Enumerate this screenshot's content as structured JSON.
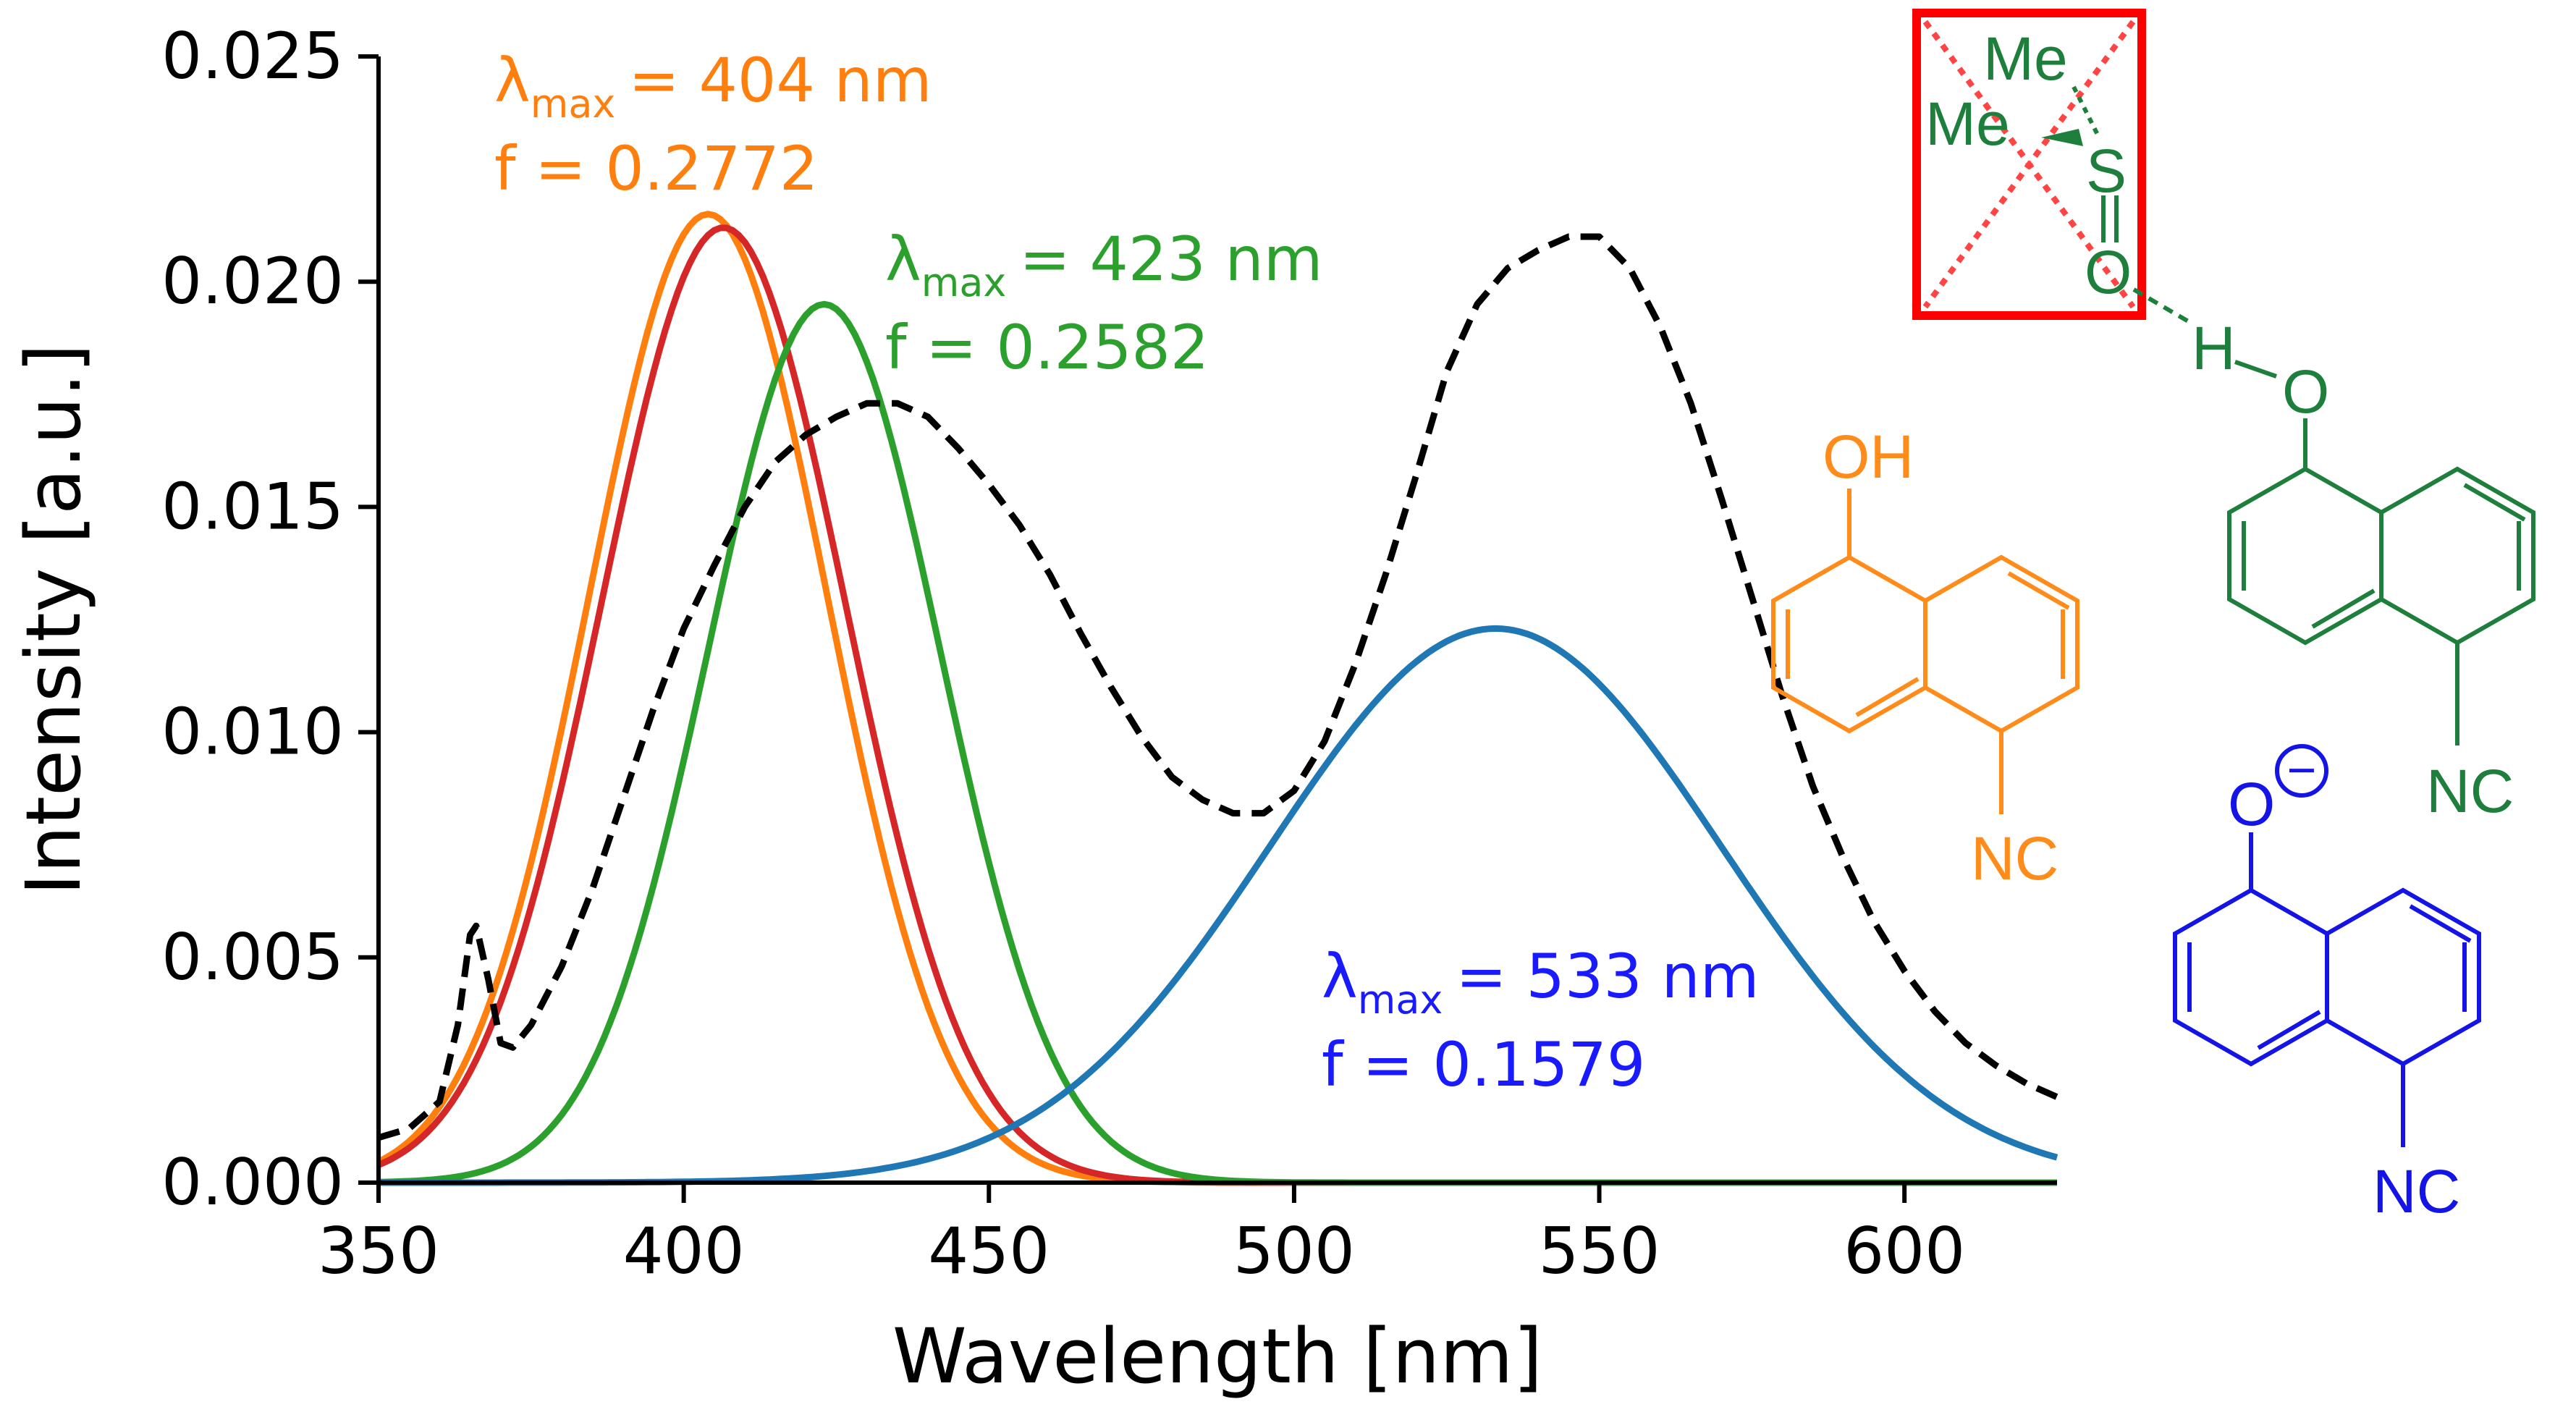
{
  "chart_data": {
    "type": "line",
    "xlabel": "Wavelength [nm]",
    "ylabel": "Intensity [a.u.]",
    "xlim": [
      350,
      625
    ],
    "ylim": [
      0,
      0.025
    ],
    "xticks": [
      350,
      400,
      450,
      500,
      550,
      600
    ],
    "yticks": [
      0.0,
      0.005,
      0.01,
      0.015,
      0.02,
      0.025
    ],
    "xtick_labels": [
      "350",
      "400",
      "450",
      "500",
      "550",
      "600"
    ],
    "ytick_labels": [
      "0.000",
      "0.005",
      "0.010",
      "0.015",
      "0.020",
      "0.025"
    ],
    "grid": false,
    "series": [
      {
        "name": "computed-orange",
        "color": "#ff7f0e",
        "style": "solid",
        "center": 404,
        "amplitude": 0.0215,
        "sigma": 19.5
      },
      {
        "name": "computed-red",
        "color": "#d62728",
        "style": "solid",
        "center": 406.5,
        "amplitude": 0.0212,
        "sigma": 20
      },
      {
        "name": "computed-green",
        "color": "#2ca02c",
        "style": "solid",
        "center": 423,
        "amplitude": 0.0195,
        "sigma": 19
      },
      {
        "name": "computed-blue",
        "color": "#1f77b4",
        "style": "solid",
        "center": 533,
        "amplitude": 0.0123,
        "sigma": 37
      },
      {
        "name": "experimental",
        "color": "#000000",
        "style": "dashed",
        "x": [
          350,
          355,
          360,
          363,
          365,
          366,
          368,
          370,
          372,
          375,
          380,
          385,
          390,
          395,
          400,
          405,
          410,
          415,
          420,
          425,
          430,
          435,
          440,
          445,
          450,
          455,
          460,
          465,
          470,
          475,
          480,
          485,
          490,
          495,
          500,
          505,
          510,
          515,
          520,
          525,
          530,
          535,
          540,
          545,
          550,
          555,
          560,
          565,
          570,
          575,
          580,
          585,
          590,
          595,
          600,
          605,
          610,
          615,
          620,
          625
        ],
        "y": [
          0.001,
          0.0012,
          0.0018,
          0.0035,
          0.0055,
          0.0057,
          0.0045,
          0.0031,
          0.003,
          0.0035,
          0.0048,
          0.0065,
          0.0085,
          0.0105,
          0.0123,
          0.0137,
          0.015,
          0.016,
          0.0166,
          0.017,
          0.0173,
          0.0173,
          0.017,
          0.0163,
          0.0155,
          0.0146,
          0.0135,
          0.0122,
          0.011,
          0.0099,
          0.009,
          0.0085,
          0.0082,
          0.0082,
          0.0087,
          0.0098,
          0.0115,
          0.0135,
          0.0157,
          0.018,
          0.0195,
          0.0203,
          0.0207,
          0.021,
          0.021,
          0.0203,
          0.019,
          0.0173,
          0.0152,
          0.013,
          0.0108,
          0.0088,
          0.0072,
          0.0058,
          0.0047,
          0.0038,
          0.0031,
          0.0026,
          0.0022,
          0.0019
        ]
      }
    ],
    "annotations": [
      {
        "lambda_label": "λ",
        "lambda_sub": "max",
        "lambda_value": "= 404 nm",
        "f_text": "f = 0.2772",
        "color": "#ff7f0e"
      },
      {
        "lambda_label": "λ",
        "lambda_sub": "max",
        "lambda_value": "= 423 nm",
        "f_text": "f = 0.2582",
        "color": "#2ca02c"
      },
      {
        "lambda_label": "λ",
        "lambda_sub": "max",
        "lambda_value": "= 533 nm",
        "f_text": "f = 0.1579",
        "color": "#1a1aff"
      }
    ]
  },
  "molecules": {
    "dmso_complex": {
      "color": "#1e7f3c",
      "me_top": "Me",
      "me_left": "Me",
      "sulfur": "S",
      "oxygen": "O",
      "hydrogen": "H",
      "phenol_oxygen": "O",
      "isocyanide": "NC",
      "crossed_box_color": "#ff0000"
    },
    "neutral": {
      "color": "#ff8c1a",
      "hydroxyl": "OH",
      "isocyanide": "NC"
    },
    "anion": {
      "color": "#1414e6",
      "oxygen": "O",
      "charge": "−",
      "isocyanide": "NC"
    }
  }
}
